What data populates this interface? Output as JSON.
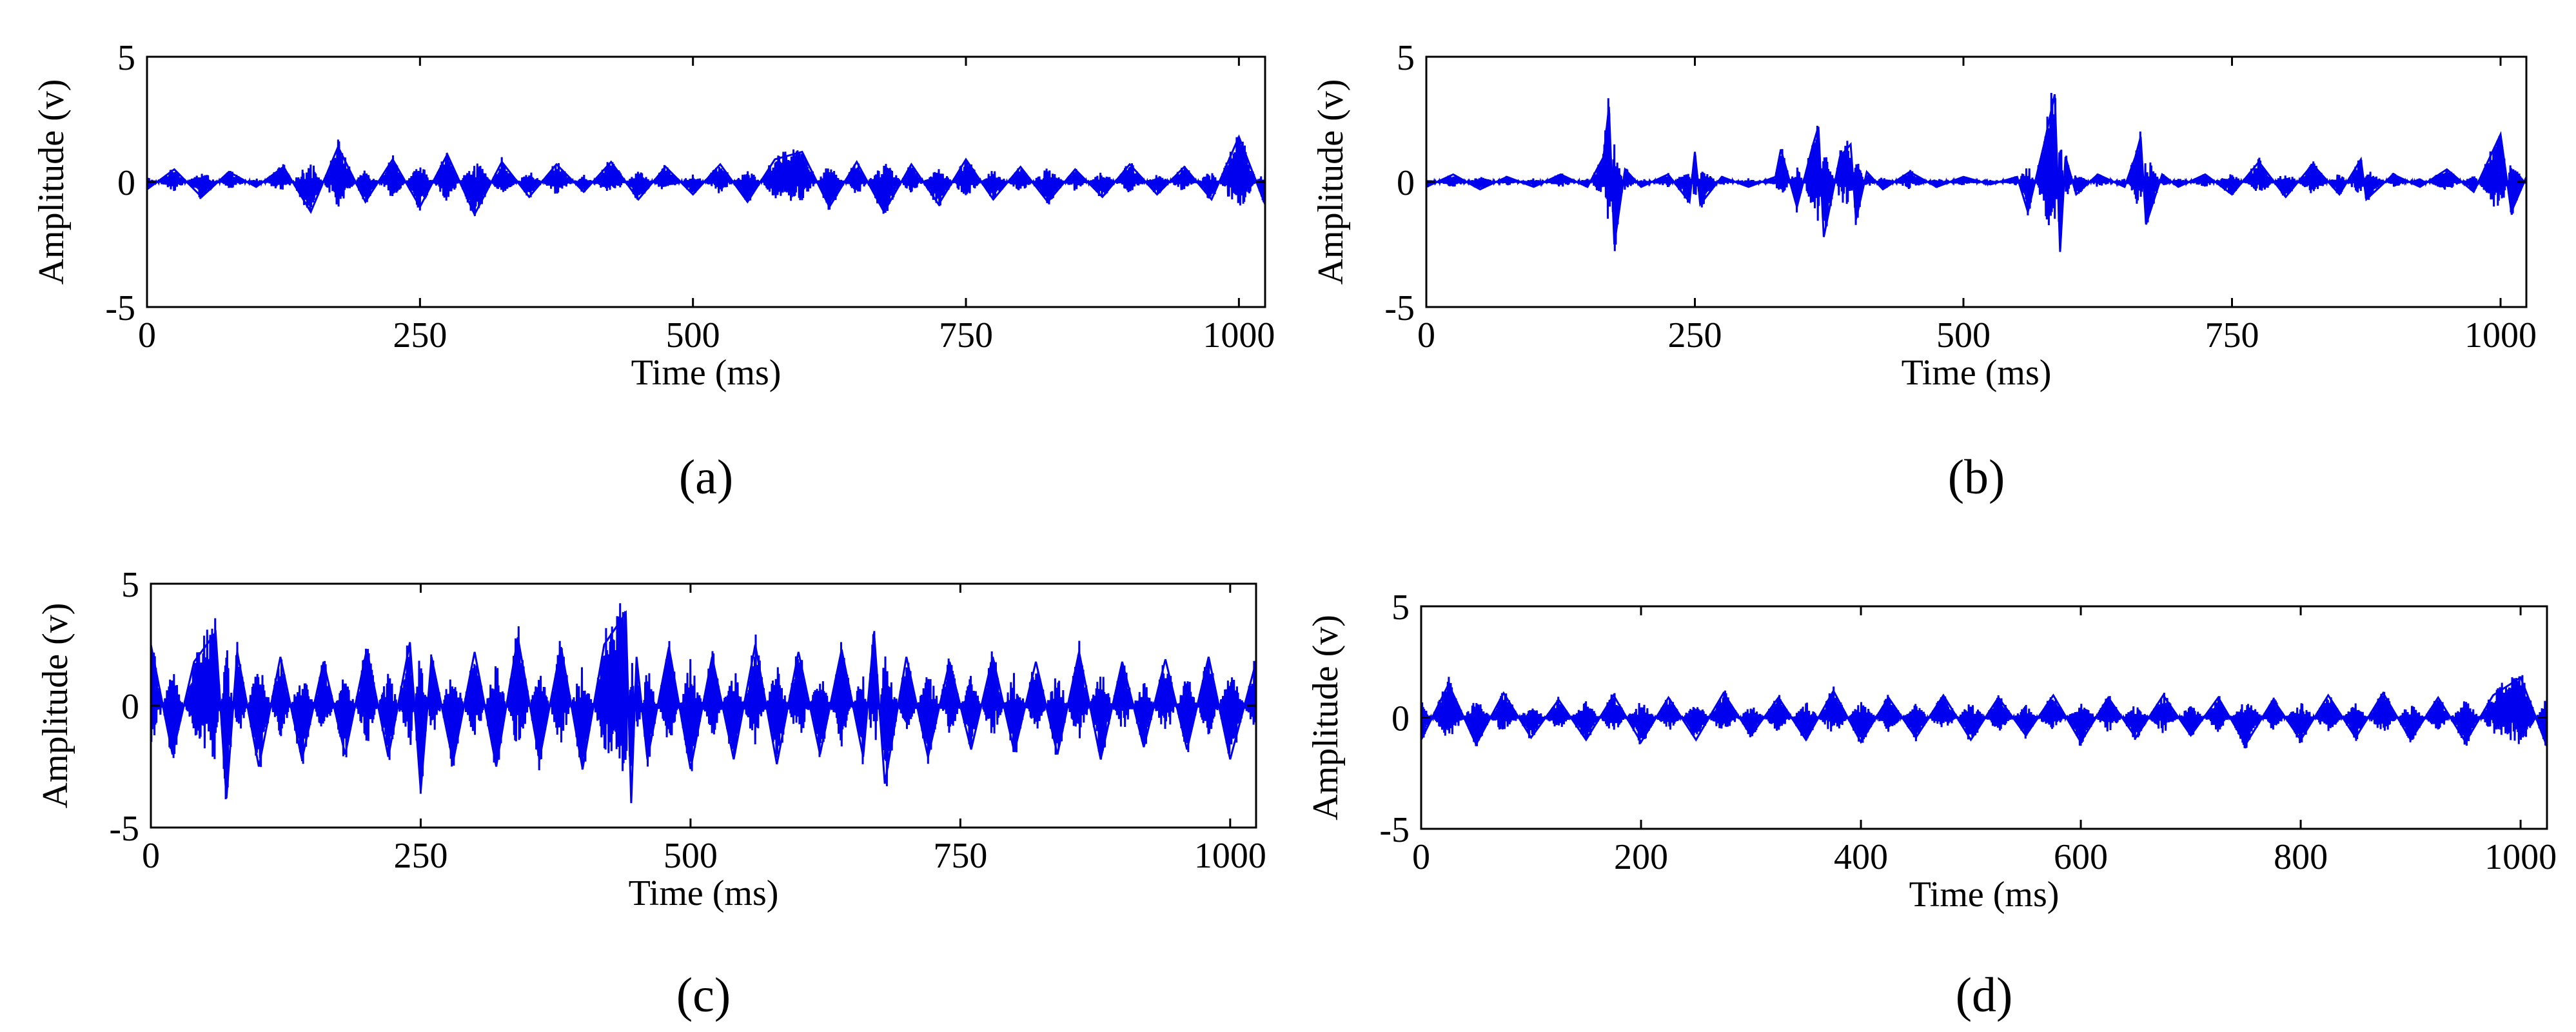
{
  "figure": {
    "panels": [
      {
        "label": "(a)"
      },
      {
        "label": "(b)"
      },
      {
        "label": "(c)"
      },
      {
        "label": "(d)"
      }
    ]
  },
  "chart_data": [
    {
      "type": "line",
      "panel_label": "(a)",
      "xlabel": "Time (ms)",
      "ylabel": "Amplitude (v)",
      "xlim": [
        0,
        1024
      ],
      "ylim": [
        -5,
        5
      ],
      "xticks": [
        0,
        250,
        500,
        750,
        1000
      ],
      "yticks": [
        5,
        0,
        -5
      ],
      "grid": false,
      "line_color": "#0000ee",
      "series": [
        {
          "x": [
            0,
            25,
            50,
            75,
            100,
            125,
            150,
            175,
            200,
            225,
            250,
            275,
            300,
            325,
            350,
            375,
            400,
            425,
            450,
            475,
            500,
            525,
            550,
            575,
            600,
            625,
            650,
            675,
            700,
            725,
            750,
            775,
            800,
            825,
            850,
            875,
            900,
            925,
            950,
            975,
            1000,
            1024
          ],
          "values": [
            -0.3,
            0.5,
            -0.6,
            0.4,
            -0.2,
            0.6,
            -1.2,
            1.4,
            -0.8,
            0.9,
            -1.0,
            1.1,
            -1.3,
            0.8,
            -0.6,
            0.7,
            -0.4,
            0.8,
            -0.7,
            0.6,
            -0.5,
            0.7,
            -0.8,
            0.9,
            1.2,
            -1.0,
            0.8,
            -1.2,
            0.7,
            -0.9,
            0.9,
            -0.7,
            0.6,
            -0.8,
            0.5,
            -0.6,
            0.7,
            -0.5,
            0.6,
            -0.7,
            1.8,
            -0.9
          ]
        }
      ]
    },
    {
      "type": "line",
      "panel_label": "(b)",
      "xlabel": "Time (ms)",
      "ylabel": "Amplitude (v)",
      "xlim": [
        0,
        1024
      ],
      "ylim": [
        -5,
        5
      ],
      "xticks": [
        0,
        250,
        500,
        750,
        1000
      ],
      "yticks": [
        5,
        0,
        -5
      ],
      "grid": false,
      "line_color": "#0000ee",
      "series": [
        {
          "x": [
            0,
            25,
            50,
            75,
            100,
            125,
            150,
            165,
            170,
            175,
            185,
            200,
            225,
            245,
            250,
            255,
            275,
            300,
            325,
            330,
            345,
            360,
            365,
            370,
            385,
            395,
            400,
            410,
            425,
            450,
            475,
            500,
            525,
            550,
            560,
            575,
            585,
            590,
            595,
            605,
            625,
            650,
            660,
            665,
            670,
            685,
            700,
            725,
            750,
            775,
            800,
            825,
            850,
            870,
            875,
            900,
            925,
            950,
            975,
            1000,
            1010,
            1024
          ],
          "values": [
            -0.2,
            0.3,
            -0.3,
            0.2,
            -0.2,
            0.3,
            -0.2,
            1.0,
            3.0,
            -2.5,
            0.5,
            -0.2,
            0.3,
            -0.8,
            1.2,
            -0.9,
            0.2,
            -0.2,
            0.2,
            1.3,
            -1.0,
            1.5,
            2.2,
            -2.2,
            1.0,
            1.5,
            -1.5,
            0.4,
            -0.3,
            0.4,
            -0.2,
            0.2,
            -0.1,
            0.2,
            -1.2,
            1.5,
            3.5,
            -2.8,
            1.0,
            -0.5,
            0.3,
            -0.2,
            1.0,
            1.8,
            -1.7,
            0.3,
            -0.2,
            0.3,
            -0.5,
            0.8,
            -0.6,
            0.7,
            -0.5,
            0.9,
            -0.7,
            0.3,
            -0.2,
            0.5,
            -0.4,
            1.9,
            -1.2,
            0.2
          ]
        }
      ]
    },
    {
      "type": "line",
      "panel_label": "(c)",
      "xlabel": "Time (ms)",
      "ylabel": "Amplitude (v)",
      "xlim": [
        0,
        1024
      ],
      "ylim": [
        -5,
        5
      ],
      "xticks": [
        0,
        250,
        500,
        750,
        1000
      ],
      "yticks": [
        5,
        0,
        -5
      ],
      "grid": false,
      "line_color": "#0000ee",
      "series": [
        {
          "x": [
            0,
            20,
            40,
            60,
            70,
            80,
            100,
            120,
            140,
            160,
            180,
            200,
            220,
            240,
            250,
            260,
            280,
            300,
            320,
            340,
            360,
            380,
            400,
            420,
            440,
            445,
            450,
            460,
            480,
            500,
            520,
            540,
            560,
            580,
            600,
            620,
            640,
            660,
            670,
            680,
            700,
            720,
            740,
            760,
            780,
            800,
            820,
            840,
            860,
            880,
            900,
            920,
            940,
            960,
            980,
            1000,
            1024
          ],
          "values": [
            2.5,
            -2.0,
            1.8,
            3.0,
            -3.8,
            2.2,
            -2.5,
            2.0,
            -2.2,
            1.8,
            -2.0,
            2.3,
            -2.1,
            2.6,
            -3.5,
            2.0,
            -2.3,
            2.2,
            -2.5,
            2.8,
            -2.2,
            2.4,
            -2.6,
            2.5,
            3.8,
            -4.0,
            2.0,
            -2.2,
            2.4,
            -2.6,
            2.0,
            -2.2,
            2.5,
            -2.4,
            2.2,
            -2.0,
            2.3,
            -2.1,
            3.0,
            -3.2,
            2.0,
            -2.1,
            1.8,
            -1.8,
            2.0,
            -1.9,
            1.8,
            -2.0,
            2.2,
            -2.2,
            1.8,
            -1.7,
            1.9,
            -1.8,
            2.0,
            -2.2,
            1.8
          ]
        }
      ]
    },
    {
      "type": "line",
      "panel_label": "(d)",
      "xlabel": "Time (ms)",
      "ylabel": "Amplitude (v)",
      "xlim": [
        0,
        1024
      ],
      "ylim": [
        -5,
        5
      ],
      "xticks": [
        0,
        200,
        400,
        600,
        800,
        1000
      ],
      "yticks": [
        5,
        0,
        -5
      ],
      "grid": false,
      "line_color": "#0000ee",
      "series": [
        {
          "x": [
            0,
            25,
            50,
            75,
            100,
            125,
            150,
            175,
            200,
            225,
            250,
            275,
            300,
            325,
            350,
            375,
            400,
            425,
            450,
            475,
            500,
            525,
            550,
            575,
            600,
            625,
            650,
            675,
            700,
            725,
            750,
            775,
            800,
            825,
            850,
            875,
            900,
            925,
            950,
            975,
            1000,
            1024
          ],
          "values": [
            -1.0,
            1.5,
            -1.2,
            1.1,
            -0.9,
            0.8,
            -1.0,
            1.0,
            -1.1,
            0.9,
            -1.0,
            1.1,
            -0.8,
            0.9,
            -1.0,
            1.2,
            -1.1,
            0.9,
            -0.9,
            1.0,
            -1.0,
            0.9,
            -0.8,
            1.0,
            -1.1,
            0.9,
            -0.9,
            1.0,
            -0.8,
            0.9,
            -1.2,
            0.8,
            -1.0,
            1.0,
            -0.9,
            1.1,
            -1.0,
            0.9,
            -1.1,
            1.0,
            1.8,
            -1.3
          ]
        }
      ]
    }
  ]
}
